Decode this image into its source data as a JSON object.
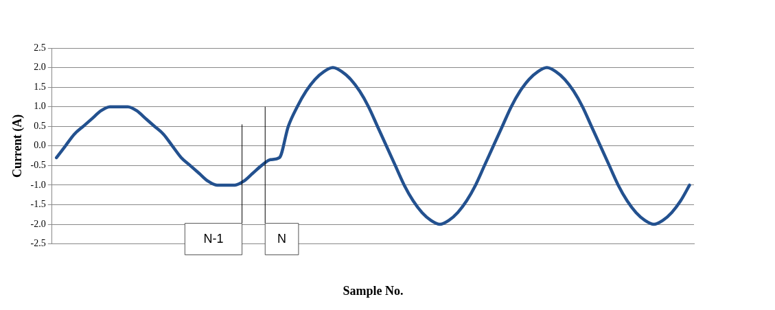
{
  "chart_data": {
    "type": "line",
    "xlabel": "Sample No.",
    "ylabel": "Current (A)",
    "categories": [
      null,
      null,
      null,
      null,
      null,
      null,
      null,
      null,
      null,
      null,
      null,
      null,
      null,
      null,
      null,
      null,
      null,
      null,
      null,
      null,
      null,
      null,
      null,
      null,
      null,
      null,
      null,
      null,
      null,
      null,
      null,
      null,
      null,
      null,
      null,
      null,
      null,
      null,
      null,
      null,
      null,
      null,
      null,
      null,
      null,
      null,
      null,
      null,
      null,
      null,
      null,
      null,
      null,
      null,
      null,
      null,
      null,
      null,
      null,
      null,
      null,
      null,
      null,
      null,
      null,
      null,
      null,
      null,
      null,
      null,
      null,
      null
    ],
    "series": [
      {
        "color": "#23518f",
        "values": [
          -0.3,
          0.0,
          0.3,
          0.5,
          0.7,
          0.9,
          1.0,
          1.0,
          1.0,
          0.9,
          0.7,
          0.5,
          0.3,
          0.0,
          -0.3,
          -0.5,
          -0.7,
          -0.9,
          -1.0,
          -1.0,
          -1.0,
          -0.9,
          -0.7,
          -0.5,
          -0.35,
          -0.3,
          0.5,
          1.0,
          1.4,
          1.7,
          1.9,
          2.0,
          1.9,
          1.7,
          1.4,
          1.0,
          0.5,
          0.0,
          -0.5,
          -1.0,
          -1.4,
          -1.7,
          -1.9,
          -2.0,
          -1.9,
          -1.7,
          -1.4,
          -1.0,
          -0.5,
          0.0,
          0.5,
          1.0,
          1.4,
          1.7,
          1.9,
          2.0,
          1.9,
          1.7,
          1.4,
          1.0,
          0.5,
          0.0,
          -0.5,
          -1.0,
          -1.4,
          -1.7,
          -1.9,
          -2.0,
          -1.9,
          -1.7,
          -1.4,
          -1.0
        ]
      }
    ],
    "ylim": [
      -2.5,
      2.5
    ],
    "yticks": [
      {
        "value": -2.5,
        "label": "-2.5"
      },
      {
        "value": -2,
        "label": "-2.0"
      },
      {
        "value": -1.5,
        "label": "-1.5"
      },
      {
        "value": -1,
        "label": "-1.0"
      },
      {
        "value": -0.5,
        "label": "-0.5"
      },
      {
        "value": 0,
        "label": "0.0"
      },
      {
        "value": 0.5,
        "label": "0.5"
      },
      {
        "value": 1,
        "label": "1.0"
      },
      {
        "value": 1.5,
        "label": "1.5"
      },
      {
        "value": 2,
        "label": "2.0"
      },
      {
        "value": 2.5,
        "label": "2.5"
      }
    ],
    "grid": "y",
    "marker": "none",
    "line_style": "solid",
    "legend": false,
    "annotations": [
      "N-1",
      "N"
    ]
  }
}
